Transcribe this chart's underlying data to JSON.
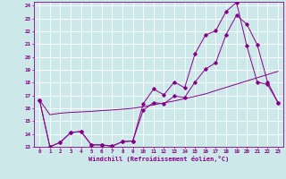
{
  "xlabel": "Windchill (Refroidissement éolien,°C)",
  "background_color": "#cce8e8",
  "line_color": "#880088",
  "xlim": [
    -0.5,
    23.5
  ],
  "ylim": [
    13,
    24.3
  ],
  "yticks": [
    13,
    14,
    15,
    16,
    17,
    18,
    19,
    20,
    21,
    22,
    23,
    24
  ],
  "xticks": [
    0,
    1,
    2,
    3,
    4,
    5,
    6,
    7,
    8,
    9,
    10,
    11,
    12,
    13,
    14,
    15,
    16,
    17,
    18,
    19,
    20,
    21,
    22,
    23
  ],
  "line1_x": [
    0,
    1,
    2,
    3,
    4,
    5,
    6,
    7,
    8,
    9,
    10,
    11,
    12,
    13,
    14,
    15,
    16,
    17,
    18,
    19,
    20,
    21,
    22,
    23
  ],
  "line1_y": [
    16.65,
    15.5,
    15.62,
    15.68,
    15.72,
    15.76,
    15.82,
    15.87,
    15.93,
    16.0,
    16.12,
    16.27,
    16.42,
    16.57,
    16.75,
    16.93,
    17.12,
    17.38,
    17.63,
    17.88,
    18.13,
    18.38,
    18.63,
    18.88
  ],
  "line2_x": [
    0,
    1,
    2,
    3,
    4,
    5,
    6,
    7,
    8,
    9,
    10,
    11,
    12,
    13,
    14,
    15,
    16,
    17,
    18,
    19,
    20,
    21,
    22,
    23
  ],
  "line2_y": [
    16.65,
    13.0,
    13.35,
    14.1,
    14.2,
    13.15,
    13.15,
    13.05,
    13.4,
    13.45,
    16.35,
    17.5,
    17.05,
    18.05,
    17.6,
    20.25,
    21.7,
    22.05,
    23.55,
    24.25,
    20.85,
    18.05,
    17.85,
    16.45
  ],
  "line3_x": [
    0,
    1,
    2,
    3,
    4,
    5,
    6,
    7,
    8,
    9,
    10,
    11,
    12,
    13,
    14,
    15,
    16,
    17,
    18,
    19,
    20,
    21,
    22,
    23
  ],
  "line3_y": [
    16.65,
    13.0,
    13.35,
    14.1,
    14.2,
    13.15,
    13.15,
    13.05,
    13.4,
    13.45,
    15.85,
    16.45,
    16.35,
    16.95,
    16.85,
    18.05,
    19.05,
    19.55,
    21.75,
    23.25,
    22.55,
    20.95,
    18.05,
    16.45
  ]
}
